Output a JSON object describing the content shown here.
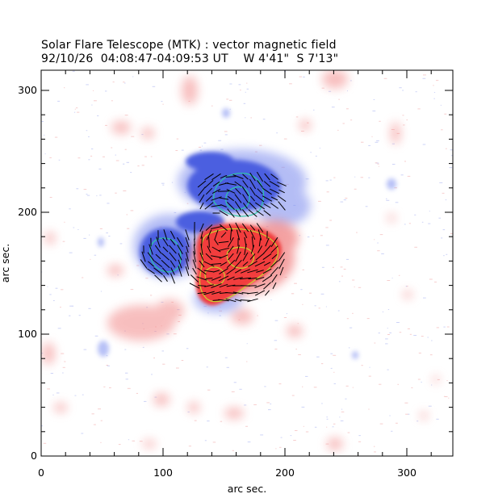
{
  "title": "Solar Flare Telescope (MTK) : vector magnetic field",
  "subtitle": {
    "date": "92/10/26",
    "time_range": "04:08:47-04:09:53 UT",
    "position": "W 4'41\"  S 7'13\""
  },
  "plot": {
    "xlabel": "arc sec.",
    "ylabel": "arc sec.",
    "xlim": [
      0,
      340
    ],
    "ylim": [
      0,
      315
    ],
    "x_ticks": [
      "0",
      "100",
      "200",
      "300"
    ],
    "y_ticks": [
      "0",
      "100",
      "200",
      "300"
    ],
    "colors": {
      "positive_polarity": "#f03a3a",
      "negative_polarity": "#4a5ee0",
      "positive_contour": "#c8d230",
      "negative_contour": "#2ec6a8",
      "vectors": "#000000"
    }
  }
}
